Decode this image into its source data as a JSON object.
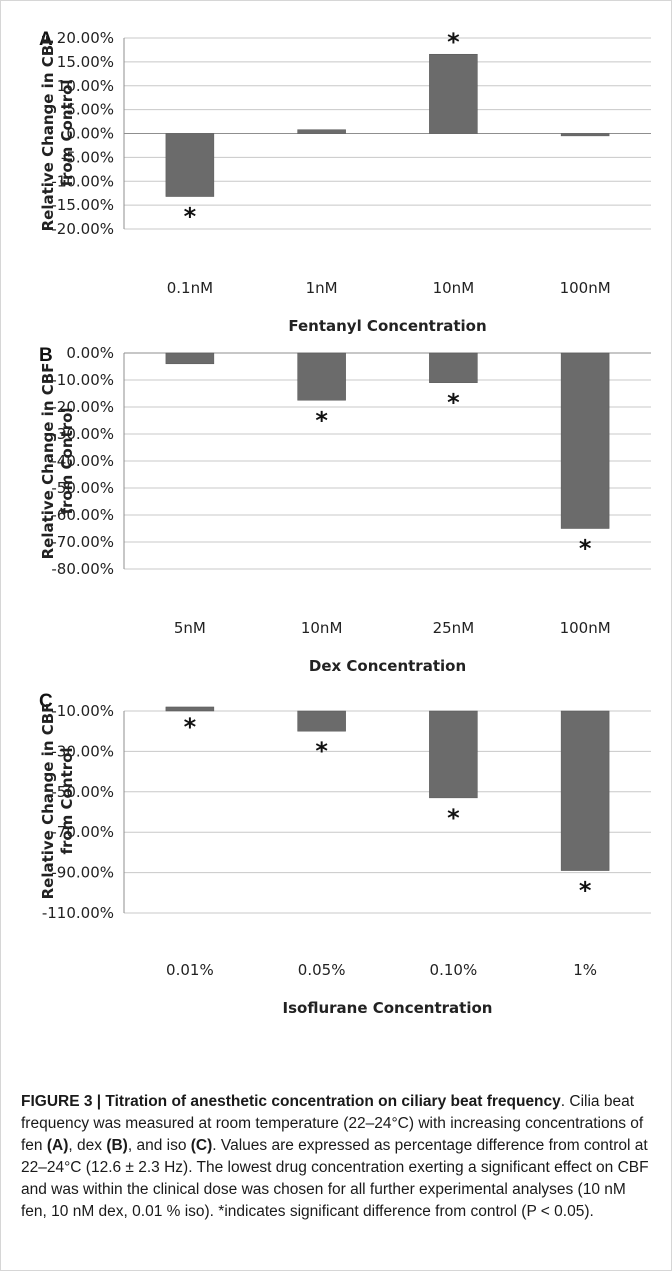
{
  "chart_data": [
    {
      "panel": "A",
      "type": "bar",
      "categories": [
        "0.1nM",
        "1nM",
        "10nM",
        "100nM"
      ],
      "values": [
        -13.2,
        0.8,
        16.6,
        -0.5
      ],
      "significant": [
        true,
        false,
        true,
        false
      ],
      "xlabel": "Fentanyl Concentration",
      "ylabel_lines": [
        "Relative Change in CBF",
        "from Control"
      ],
      "ylim": [
        -20,
        20
      ],
      "yticks": [
        20,
        15,
        10,
        5,
        0,
        -5,
        -10,
        -15,
        -20
      ],
      "ytick_labels": [
        "20.00%",
        "15.00%",
        "10.00%",
        "5.00%",
        "0.00%",
        "-5.00%",
        "-10.00%",
        "-15.00%",
        "-20.00%"
      ],
      "bar_color": "#6b6b6b",
      "grid": true
    },
    {
      "panel": "B",
      "type": "bar",
      "categories": [
        "5nM",
        "10nM",
        "25nM",
        "100nM"
      ],
      "values": [
        -4,
        -17.5,
        -11,
        -65
      ],
      "significant": [
        false,
        true,
        true,
        true
      ],
      "xlabel": "Dex Concentration",
      "ylabel_lines": [
        "Relative Change in CBF",
        "from Control"
      ],
      "ylim": [
        -80,
        0
      ],
      "yticks": [
        0,
        -10,
        -20,
        -30,
        -40,
        -50,
        -60,
        -70,
        -80
      ],
      "ytick_labels": [
        "0.00%",
        "-10.00%",
        "-20.00%",
        "-30.00%",
        "-40.00%",
        "-50.00%",
        "-60.00%",
        "-70.00%",
        "-80.00%"
      ],
      "bar_color": "#6b6b6b",
      "grid": true
    },
    {
      "panel": "C",
      "type": "bar",
      "categories": [
        "0.01%",
        "0.05%",
        "0.10%",
        "1%"
      ],
      "values": [
        -8,
        -20,
        -53,
        -89
      ],
      "significant": [
        true,
        true,
        true,
        true
      ],
      "xlabel": "Isoflurane Concentration",
      "ylabel_lines": [
        "Relative Change in CBF",
        "from Control"
      ],
      "ylim": [
        -110,
        0
      ],
      "yticks": [
        -10,
        -30,
        -50,
        -70,
        -90,
        -110
      ],
      "ytick_labels": [
        "-10.00%",
        "-30.00%",
        "-50.00%",
        "-70.00%",
        "-90.00%",
        "-110.00%"
      ],
      "bar_color": "#6b6b6b",
      "grid": true
    }
  ],
  "caption": {
    "figure_label": "FIGURE 3 | Titration of anesthetic concentration on ciliary beat frequency",
    "t1": ". Cilia beat frequency was measured at room temperature (22–24°C) with increasing concentrations of fen ",
    "ref_a": "(A)",
    "t2": ", dex ",
    "ref_b": "(B)",
    "t3": ", and iso ",
    "ref_c": "(C)",
    "t4": ". Values are expressed as percentage difference from control at 22–24°C (12.6 ± 2.3 Hz). The lowest drug concentration exerting a significant effect on CBF and was within the clinical dose was chosen for all further experimental analyses (10 nM fen, 10 nM dex, 0.01 % iso). *indicates significant difference from control (P < 0.05)."
  }
}
